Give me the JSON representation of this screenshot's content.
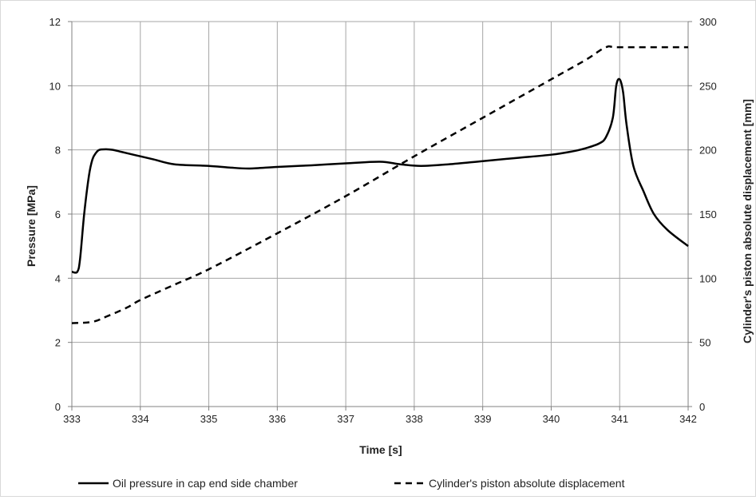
{
  "chart_data": {
    "type": "line",
    "title": "",
    "xlabel": "Time [s]",
    "ylabel": "Pressure  [MPa]",
    "y2label": "Cylinder's piston absolute displacement  [mm]",
    "xlim": [
      333,
      342
    ],
    "ylim": [
      0,
      12
    ],
    "y2lim": [
      0,
      300
    ],
    "xticks": [
      333,
      334,
      335,
      336,
      337,
      338,
      339,
      340,
      341,
      342
    ],
    "yticks": [
      0,
      2,
      4,
      6,
      8,
      10,
      12
    ],
    "y2ticks": [
      0,
      50,
      100,
      150,
      200,
      250,
      300
    ],
    "grid": true,
    "legend_position": "bottom",
    "series": [
      {
        "name": "Oil pressure in cap end side chamber",
        "axis": "left",
        "style": "solid",
        "color": "#000000",
        "x": [
          333.0,
          333.08,
          333.12,
          333.18,
          333.25,
          333.3,
          333.35,
          333.4,
          333.5,
          333.6,
          333.7,
          333.8,
          334.0,
          334.2,
          334.5,
          335.0,
          335.3,
          335.6,
          336.0,
          336.5,
          337.0,
          337.5,
          337.8,
          338.1,
          338.5,
          339.0,
          339.5,
          340.0,
          340.3,
          340.5,
          340.7,
          340.8,
          340.9,
          340.95,
          341.0,
          341.05,
          341.1,
          341.2,
          341.35,
          341.5,
          341.7,
          342.0
        ],
        "y": [
          4.2,
          4.2,
          4.6,
          6.0,
          7.2,
          7.7,
          7.9,
          8.0,
          8.02,
          8.0,
          7.95,
          7.9,
          7.8,
          7.7,
          7.55,
          7.5,
          7.45,
          7.42,
          7.47,
          7.52,
          7.58,
          7.63,
          7.55,
          7.5,
          7.55,
          7.65,
          7.75,
          7.85,
          7.95,
          8.05,
          8.2,
          8.4,
          9.0,
          10.0,
          10.2,
          9.8,
          8.8,
          7.5,
          6.7,
          6.0,
          5.5,
          5.0
        ]
      },
      {
        "name": "Cylinder's piston absolute displacement",
        "axis": "right",
        "style": "dashed",
        "color": "#000000",
        "x": [
          333.0,
          333.3,
          333.5,
          333.8,
          334.0,
          334.5,
          335.0,
          336.0,
          337.0,
          338.0,
          339.0,
          340.0,
          340.5,
          340.8,
          341.0,
          342.0
        ],
        "y": [
          65,
          66,
          70,
          77,
          83,
          95,
          107,
          135,
          164,
          195,
          225,
          255,
          270,
          280,
          280,
          280
        ]
      }
    ]
  }
}
